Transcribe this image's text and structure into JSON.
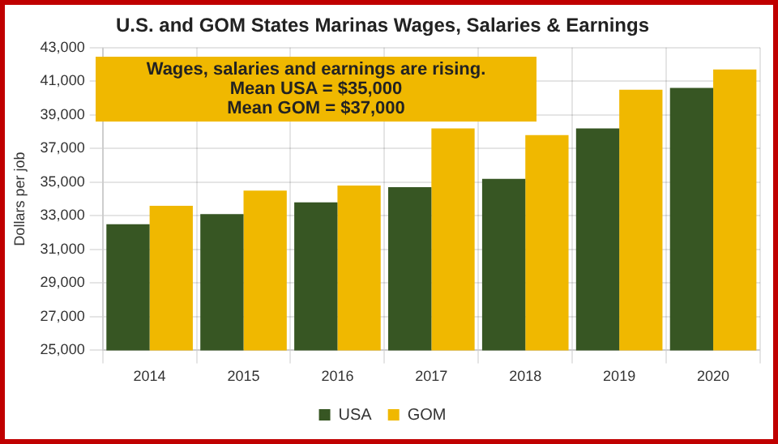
{
  "chart_data": {
    "type": "bar",
    "title": "U.S. and GOM States Marinas Wages, Salaries & Earnings",
    "ylabel": "Dollars per job",
    "categories": [
      "2014",
      "2015",
      "2016",
      "2017",
      "2018",
      "2019",
      "2020"
    ],
    "series": [
      {
        "name": "USA",
        "color": "#375623",
        "values": [
          32500,
          33100,
          33800,
          34700,
          35200,
          38200,
          40600
        ]
      },
      {
        "name": "GOM",
        "color": "#f0b800",
        "values": [
          33600,
          34500,
          34800,
          38200,
          37800,
          40500,
          41700
        ]
      }
    ],
    "ylim": [
      25000,
      43000
    ],
    "yticks": [
      {
        "value": 25000,
        "label": "25,000"
      },
      {
        "value": 27000,
        "label": "27,000"
      },
      {
        "value": 29000,
        "label": "29,000"
      },
      {
        "value": 31000,
        "label": "31,000"
      },
      {
        "value": 33000,
        "label": "33,000"
      },
      {
        "value": 35000,
        "label": "35,000"
      },
      {
        "value": 37000,
        "label": "37,000"
      },
      {
        "value": 39000,
        "label": "39,000"
      },
      {
        "value": 41000,
        "label": "41,000"
      },
      {
        "value": 43000,
        "label": "43,000"
      }
    ],
    "grid": true,
    "legend": "bottom",
    "annotations": [
      "Wages, salaries and earnings are rising.",
      "Mean USA = $35,000",
      "Mean GOM = $37,000"
    ]
  }
}
